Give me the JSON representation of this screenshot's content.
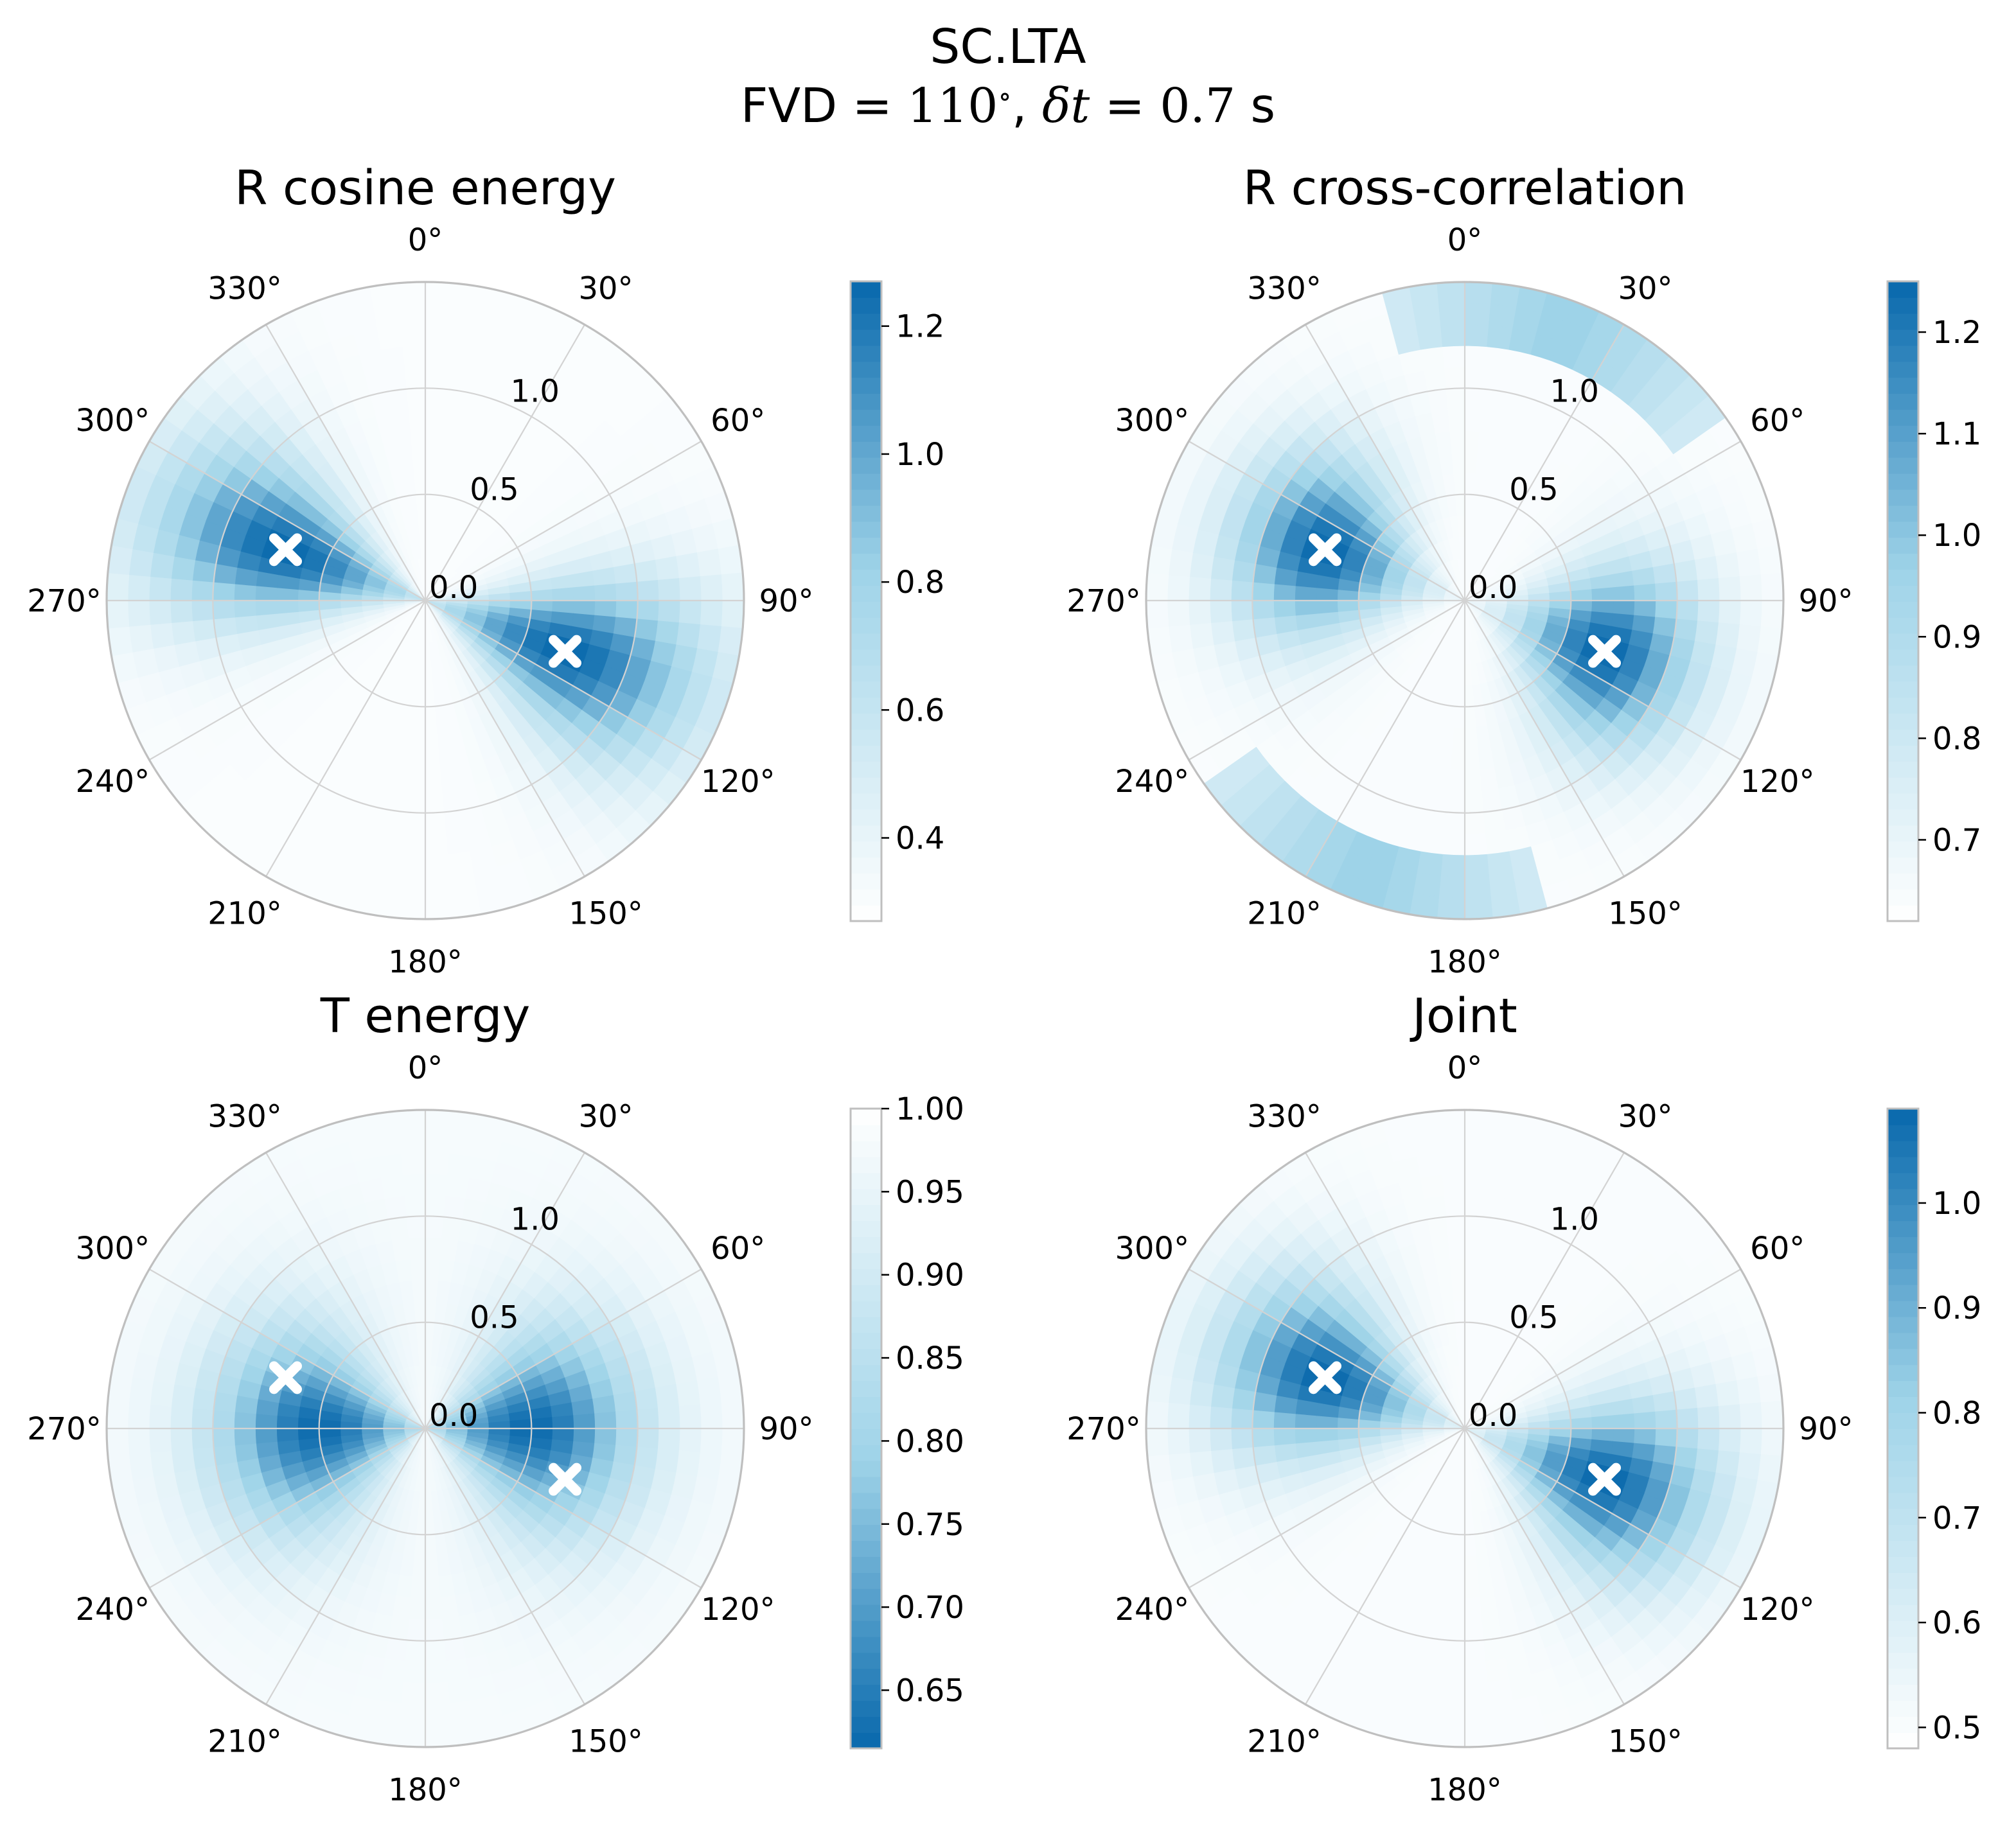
{
  "figure": {
    "title": "SC.LTA",
    "subtitle": {
      "prefix": "FVD = ",
      "fvd_value": "110",
      "degree_symbol": "∘",
      "mid": ", ",
      "dt_symbol": "δt",
      "eq": " = ",
      "dt_value": "0.7",
      "unit": " s"
    }
  },
  "chart_data": [
    {
      "type": "heatmap",
      "projection": "polar",
      "title": "R cosine energy",
      "theta_zero": "north",
      "theta_direction": "clockwise",
      "theta_tick_labels": [
        "0°",
        "30°",
        "60°",
        "90°",
        "120°",
        "150°",
        "180°",
        "210°",
        "240°",
        "270°",
        "300°",
        "330°"
      ],
      "r_tick_values": [
        0.0,
        0.5,
        1.0
      ],
      "r_tick_labels": [
        "0.0",
        "0.5",
        "1.0"
      ],
      "rlim": [
        0,
        1.5
      ],
      "grid": true,
      "colormap": "white-to-blue",
      "colorbar": {
        "range": [
          0.27,
          1.27
        ],
        "ticks": [
          0.4,
          0.6,
          0.8,
          1.0,
          1.2
        ],
        "tick_labels": [
          "0.4",
          "0.6",
          "0.8",
          "1.0",
          "1.2"
        ],
        "reversed": false
      },
      "peaks": [
        {
          "theta": 290,
          "r": 0.7
        },
        {
          "theta": 110,
          "r": 0.7
        }
      ],
      "markers": [
        {
          "theta": 290,
          "r": 0.7,
          "symbol": "X",
          "color": "#ffffff"
        },
        {
          "theta": 110,
          "r": 0.7,
          "symbol": "X",
          "color": "#ffffff"
        }
      ],
      "field": {
        "base": 0.3,
        "peak_value": 1.27,
        "angular_width_deg": 18,
        "radial_width": 0.45,
        "ring_peaks": []
      }
    },
    {
      "type": "heatmap",
      "projection": "polar",
      "title": "R cross-correlation",
      "theta_zero": "north",
      "theta_direction": "clockwise",
      "theta_tick_labels": [
        "0°",
        "30°",
        "60°",
        "90°",
        "120°",
        "150°",
        "180°",
        "210°",
        "240°",
        "270°",
        "300°",
        "330°"
      ],
      "r_tick_values": [
        0.0,
        0.5,
        1.0
      ],
      "r_tick_labels": [
        "0.0",
        "0.5",
        "1.0"
      ],
      "rlim": [
        0,
        1.5
      ],
      "grid": true,
      "colormap": "white-to-blue",
      "colorbar": {
        "range": [
          0.62,
          1.25
        ],
        "ticks": [
          0.7,
          0.8,
          0.9,
          1.0,
          1.1,
          1.2
        ],
        "tick_labels": [
          "0.7",
          "0.8",
          "0.9",
          "1.0",
          "1.1",
          "1.2"
        ],
        "reversed": false
      },
      "peaks": [
        {
          "theta": 290,
          "r": 0.7
        },
        {
          "theta": 110,
          "r": 0.7
        }
      ],
      "markers": [
        {
          "theta": 290,
          "r": 0.7,
          "symbol": "X",
          "color": "#ffffff"
        },
        {
          "theta": 110,
          "r": 0.7,
          "symbol": "X",
          "color": "#ffffff"
        }
      ],
      "field": {
        "base": 0.64,
        "peak_value": 1.25,
        "angular_width_deg": 22,
        "radial_width": 0.3,
        "ring_peaks": [
          {
            "theta_center": 20,
            "theta_half_width": 35,
            "r": 1.35,
            "value": 0.98
          },
          {
            "theta_center": 200,
            "theta_half_width": 35,
            "r": 1.35,
            "value": 0.98
          }
        ]
      }
    },
    {
      "type": "heatmap",
      "projection": "polar",
      "title": "T energy",
      "theta_zero": "north",
      "theta_direction": "clockwise",
      "theta_tick_labels": [
        "0°",
        "30°",
        "60°",
        "90°",
        "120°",
        "150°",
        "180°",
        "210°",
        "240°",
        "270°",
        "300°",
        "330°"
      ],
      "r_tick_values": [
        0.0,
        0.5,
        1.0
      ],
      "r_tick_labels": [
        "0.0",
        "0.5",
        "1.0"
      ],
      "rlim": [
        0,
        1.5
      ],
      "grid": true,
      "colormap": "blue-to-white",
      "colorbar": {
        "range": [
          0.615,
          1.0
        ],
        "ticks": [
          0.65,
          0.7,
          0.75,
          0.8,
          0.85,
          0.9,
          0.95,
          1.0
        ],
        "tick_labels": [
          "0.65",
          "0.70",
          "0.75",
          "0.80",
          "0.85",
          "0.90",
          "0.95",
          "1.00"
        ],
        "reversed": true
      },
      "peaks": [
        {
          "theta": 270,
          "r": 0.5
        },
        {
          "theta": 90,
          "r": 0.5
        }
      ],
      "markers": [
        {
          "theta": 290,
          "r": 0.7,
          "symbol": "X",
          "color": "#ffffff"
        },
        {
          "theta": 110,
          "r": 0.7,
          "symbol": "X",
          "color": "#ffffff"
        }
      ],
      "field": {
        "base": 0.98,
        "peak_value": 0.62,
        "angular_width_deg": 30,
        "radial_width": 0.35,
        "ring_peaks": []
      }
    },
    {
      "type": "heatmap",
      "projection": "polar",
      "title": "Joint",
      "theta_zero": "north",
      "theta_direction": "clockwise",
      "theta_tick_labels": [
        "0°",
        "30°",
        "60°",
        "90°",
        "120°",
        "150°",
        "180°",
        "210°",
        "240°",
        "270°",
        "300°",
        "330°"
      ],
      "r_tick_values": [
        0.0,
        0.5,
        1.0
      ],
      "r_tick_labels": [
        "0.0",
        "0.5",
        "1.0"
      ],
      "rlim": [
        0,
        1.5
      ],
      "grid": true,
      "colormap": "white-to-blue",
      "colorbar": {
        "range": [
          0.48,
          1.09
        ],
        "ticks": [
          0.5,
          0.6,
          0.7,
          0.8,
          0.9,
          1.0
        ],
        "tick_labels": [
          "0.5",
          "0.6",
          "0.7",
          "0.8",
          "0.9",
          "1.0"
        ],
        "reversed": false
      },
      "peaks": [
        {
          "theta": 290,
          "r": 0.7
        },
        {
          "theta": 110,
          "r": 0.7
        }
      ],
      "markers": [
        {
          "theta": 290,
          "r": 0.7,
          "symbol": "X",
          "color": "#ffffff"
        },
        {
          "theta": 110,
          "r": 0.7,
          "symbol": "X",
          "color": "#ffffff"
        }
      ],
      "field": {
        "base": 0.5,
        "peak_value": 1.09,
        "angular_width_deg": 20,
        "radial_width": 0.35,
        "ring_peaks": []
      }
    }
  ],
  "colors": {
    "colormap_low": "#ffffff",
    "colormap_mid": "#9ed3e8",
    "colormap_high": "#0868ac",
    "grid": "#d3d3d3",
    "spine": "#bfbfbf",
    "marker": "#ffffff"
  }
}
